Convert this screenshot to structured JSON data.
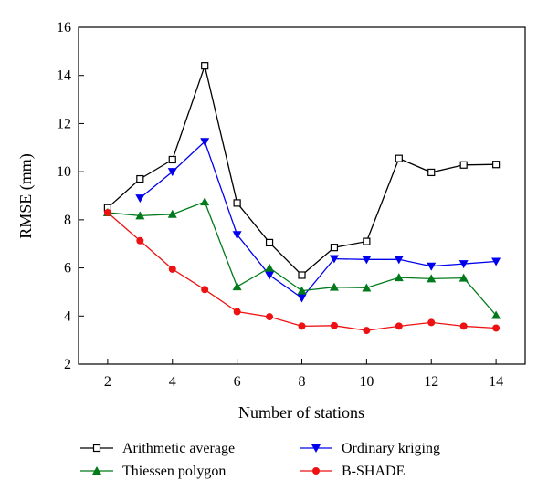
{
  "chart_data": {
    "type": "line",
    "title": "",
    "xlabel": "Number of stations",
    "ylabel": "RMSE (mm)",
    "xlim": [
      1.1,
      14.9
    ],
    "ylim": [
      2,
      16
    ],
    "xticks": [
      2,
      4,
      6,
      8,
      10,
      12,
      14
    ],
    "yticks": [
      2,
      4,
      6,
      8,
      10,
      12,
      14,
      16
    ],
    "grid": false,
    "legend_position": "bottom",
    "series": [
      {
        "name": "Arithmetic average",
        "color": "#000000",
        "marker": "open-square",
        "x": [
          2,
          3,
          4,
          5,
          6,
          7,
          8,
          9,
          10,
          11,
          12,
          13,
          14
        ],
        "y": [
          8.5,
          9.7,
          10.5,
          14.4,
          8.7,
          7.05,
          5.7,
          6.85,
          7.1,
          10.55,
          9.97,
          10.28,
          10.3
        ]
      },
      {
        "name": "Ordinary kriging",
        "color": "#0000ee",
        "marker": "down-triangle",
        "x": [
          3,
          4,
          5,
          6,
          7,
          8,
          9,
          10,
          11,
          12,
          13,
          14
        ],
        "y": [
          8.9,
          10.0,
          11.25,
          7.38,
          5.7,
          4.75,
          6.38,
          6.35,
          6.35,
          6.07,
          6.17,
          6.27
        ]
      },
      {
        "name": "Thiessen polygon",
        "color": "#007a1a",
        "marker": "up-triangle",
        "x": [
          2,
          3,
          4,
          5,
          6,
          7,
          8,
          9,
          10,
          11,
          12,
          13,
          14
        ],
        "y": [
          8.3,
          8.17,
          8.23,
          8.75,
          5.22,
          6.0,
          5.05,
          5.2,
          5.17,
          5.6,
          5.55,
          5.58,
          4.03
        ]
      },
      {
        "name": "B-SHADE",
        "color": "#ee1111",
        "marker": "circle",
        "x": [
          2,
          3,
          4,
          5,
          6,
          7,
          8,
          9,
          10,
          11,
          12,
          13,
          14
        ],
        "y": [
          8.3,
          7.13,
          5.95,
          5.1,
          4.18,
          3.97,
          3.58,
          3.6,
          3.4,
          3.58,
          3.73,
          3.58,
          3.5
        ]
      }
    ]
  }
}
